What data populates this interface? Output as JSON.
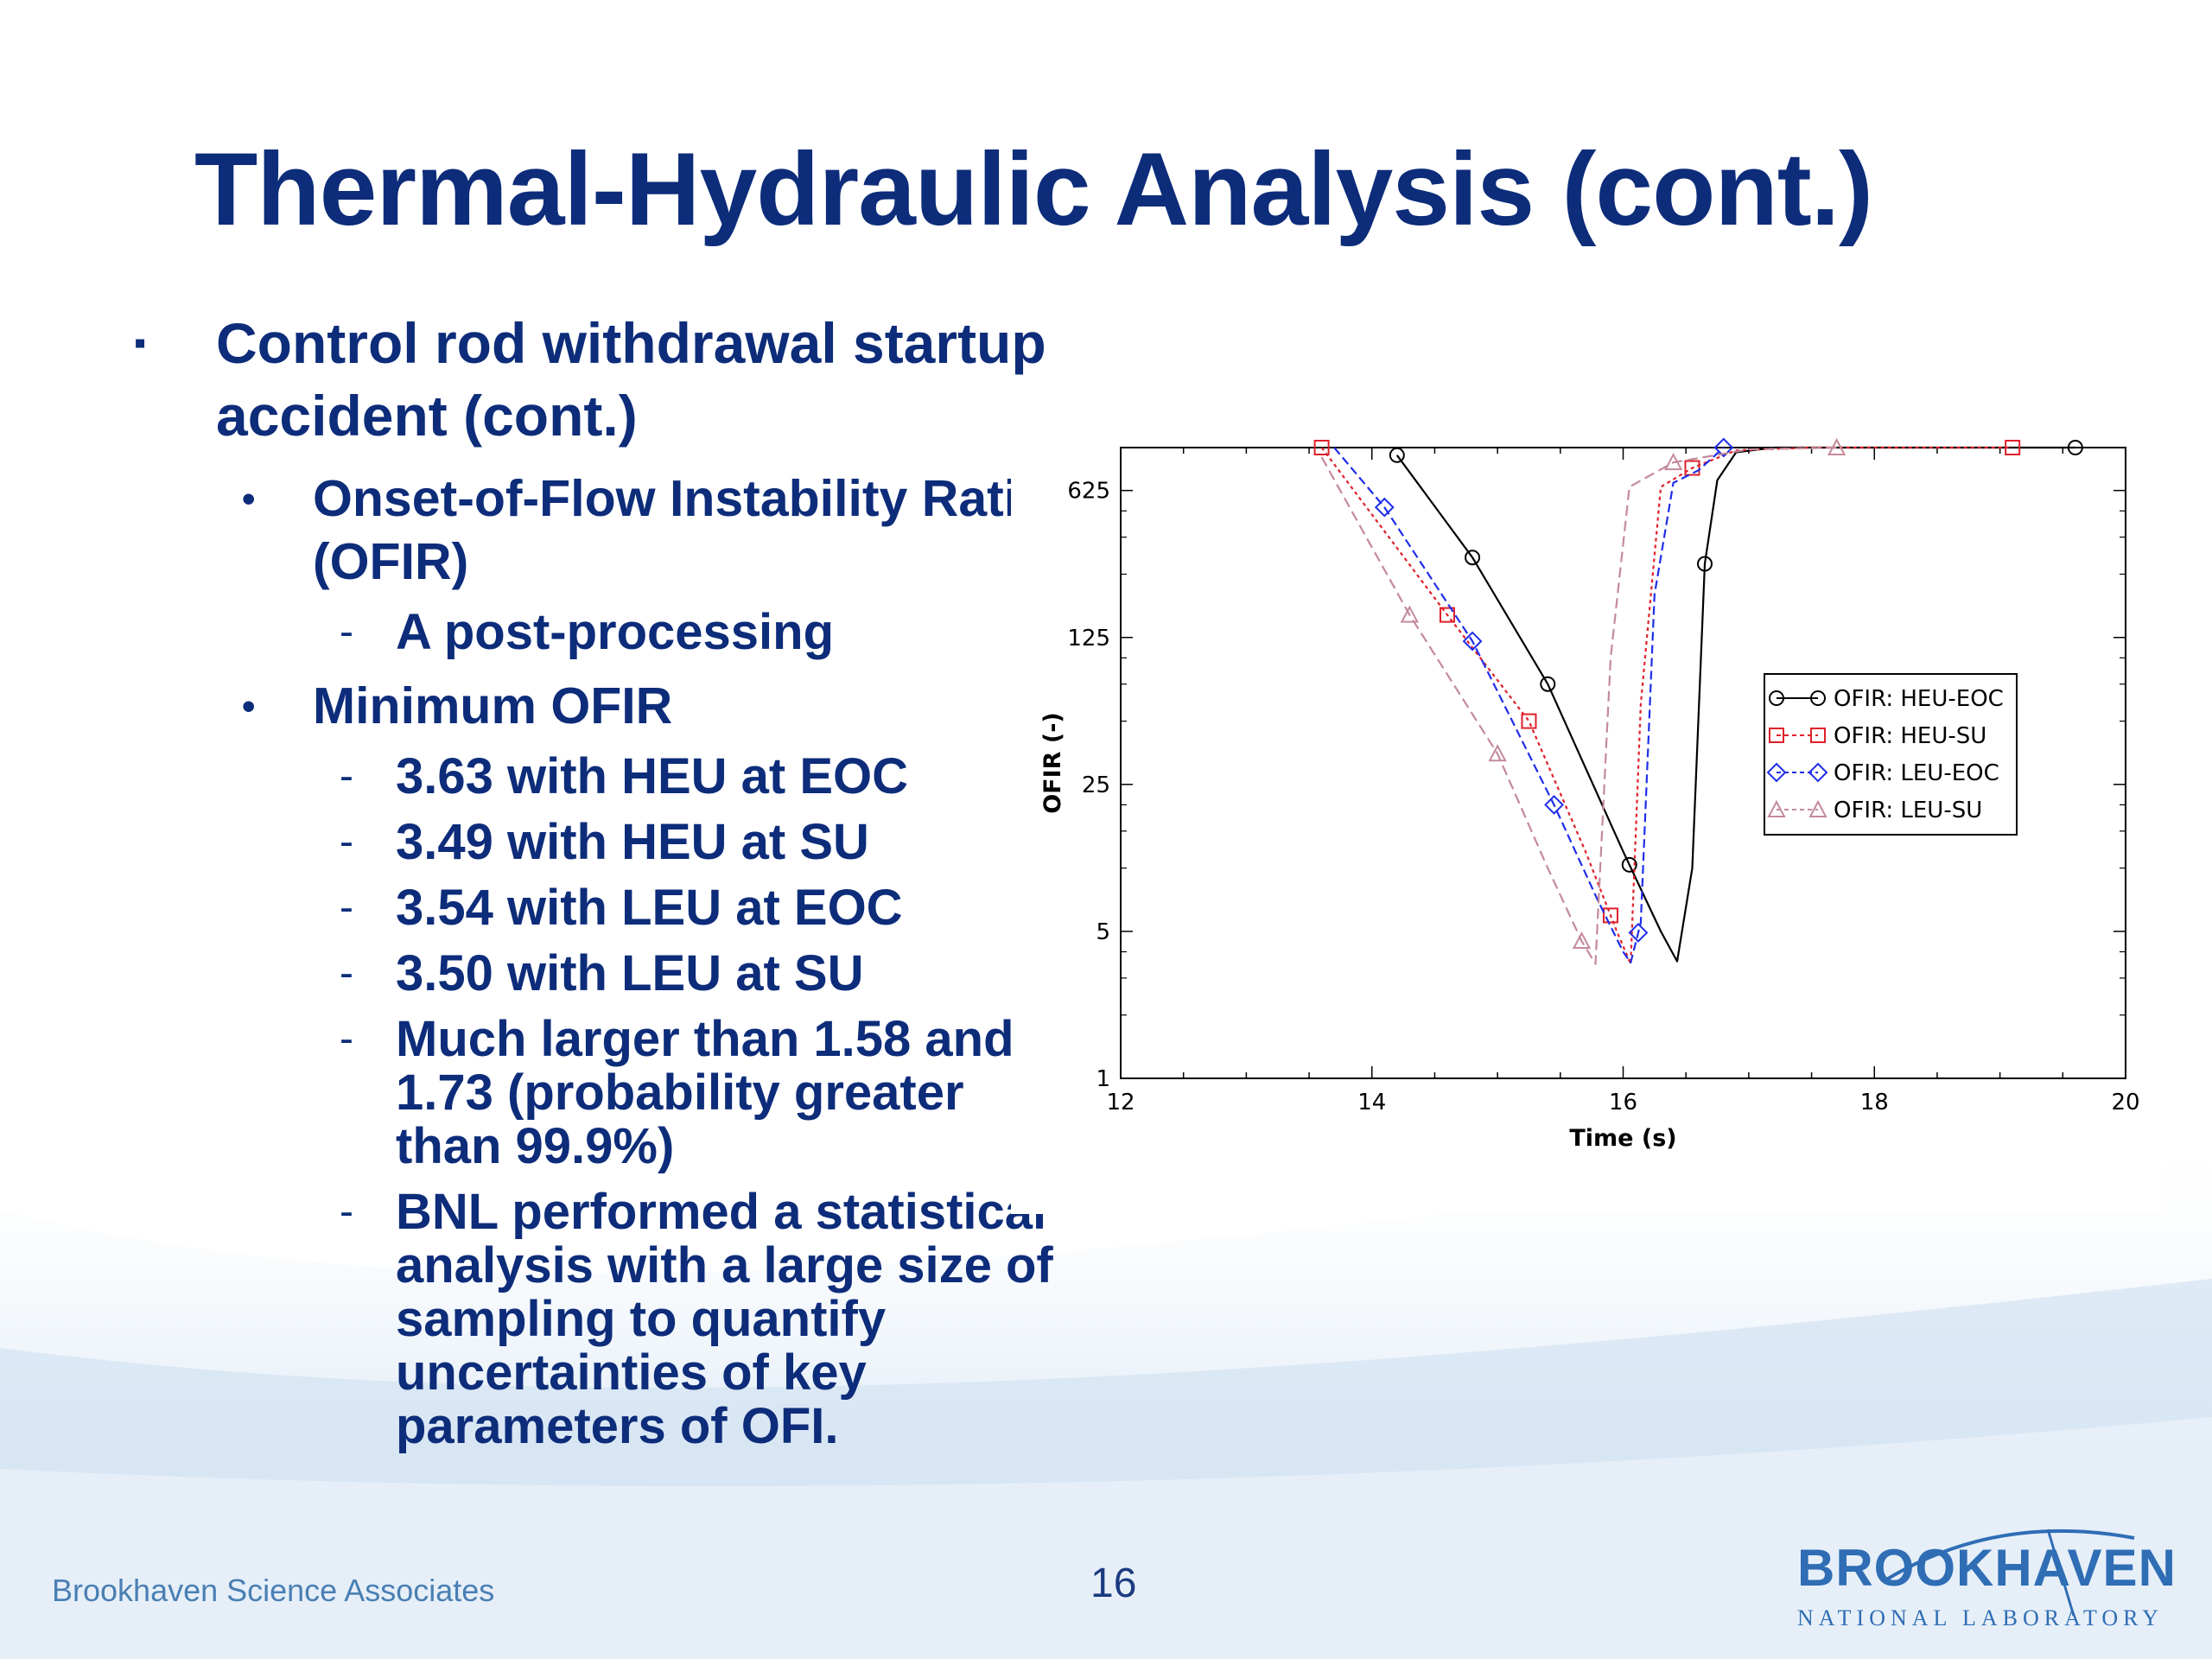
{
  "slide": {
    "title": "Thermal-Hydraulic Analysis (cont.)",
    "bullets": {
      "item1": "Control rod withdrawal startup accident (cont.)",
      "item1_sub1": "Onset-of-Flow Instability Ratio (OFIR)",
      "item1_sub1_a": "A post-processing",
      "item1_sub2": "Minimum OFIR",
      "min_values": [
        "3.63 with HEU at EOC",
        "3.49 with HEU at SU",
        "3.54 with LEU at EOC",
        "3.50 with LEU at SU",
        "Much larger than 1.58 and 1.73 (probability greater than 99.9%)",
        "BNL performed a statistical analysis with a large size of sampling to quantify uncertainties of key parameters of OFI."
      ]
    },
    "bullet_marker": "▪",
    "sub_marker": "•",
    "dash_marker": "-"
  },
  "footer": {
    "org": "Brookhaven Science Associates",
    "page": "16",
    "logo_main": "BROOKHAVEN",
    "logo_sub": "NATIONAL LABORATORY"
  },
  "colors": {
    "title": "#0d2c7a",
    "heu_eoc": "#000000",
    "heu_su": "#e0202a",
    "leu_eoc": "#1f2ee8",
    "leu_su": "#c48a9a"
  },
  "chart_data": {
    "type": "line",
    "title": "",
    "xlabel": "Time (s)",
    "ylabel": "OFIR (-)",
    "xlim": [
      12,
      20
    ],
    "ylim": [
      1,
      1000
    ],
    "yscale": "log5",
    "xticks": [
      12,
      14,
      16,
      18,
      20
    ],
    "yticks": [
      1,
      5,
      25,
      125,
      625
    ],
    "legend_position": "right",
    "series": [
      {
        "name": "OFIR: HEU-EOC",
        "color": "#000000",
        "dash": "",
        "marker": "circle",
        "x": [
          14.2,
          14.8,
          15.4,
          16.0,
          16.3,
          16.43,
          16.55,
          16.65,
          16.75,
          16.9,
          17.2,
          18.5,
          19.6
        ],
        "y": [
          920,
          300,
          75,
          12,
          5,
          3.6,
          10,
          280,
          700,
          950,
          1000,
          1000,
          1000
        ],
        "markers_x": [
          14.2,
          14.8,
          15.4,
          16.05,
          16.65,
          19.6
        ]
      },
      {
        "name": "OFIR: HEU-SU",
        "color": "#e0202a",
        "dash": "4,4",
        "marker": "square",
        "x": [
          13.6,
          14.6,
          15.25,
          15.7,
          15.95,
          16.06,
          16.14,
          16.3,
          16.55,
          16.9,
          17.5,
          19.1
        ],
        "y": [
          1000,
          160,
          50,
          12,
          5,
          3.5,
          60,
          650,
          800,
          970,
          1000,
          1000
        ],
        "markers_x": [
          13.6,
          14.6,
          15.25,
          15.9,
          16.55,
          19.1
        ]
      },
      {
        "name": "OFIR: LEU-EOC",
        "color": "#1f2ee8",
        "dash": "10,5",
        "marker": "diamond",
        "x": [
          13.7,
          14.1,
          14.8,
          15.45,
          15.8,
          16.0,
          16.06,
          16.14,
          16.25,
          16.4,
          16.6,
          16.8
        ],
        "y": [
          1000,
          520,
          120,
          20,
          7,
          4,
          3.55,
          5.5,
          200,
          680,
          780,
          1000
        ],
        "markers_x": [
          14.1,
          14.8,
          15.45,
          16.12,
          16.8
        ]
      },
      {
        "name": "OFIR: LEU-SU",
        "color": "#c48a9a",
        "dash": "12,6",
        "marker": "triangle",
        "x": [
          13.6,
          14.3,
          15.0,
          15.4,
          15.67,
          15.78,
          15.9,
          16.05,
          16.4,
          17.0,
          17.7
        ],
        "y": [
          900,
          160,
          35,
          10,
          4.5,
          3.5,
          100,
          650,
          850,
          980,
          1000
        ],
        "markers_x": [
          14.3,
          15.0,
          15.67,
          16.4,
          17.7
        ]
      }
    ]
  }
}
